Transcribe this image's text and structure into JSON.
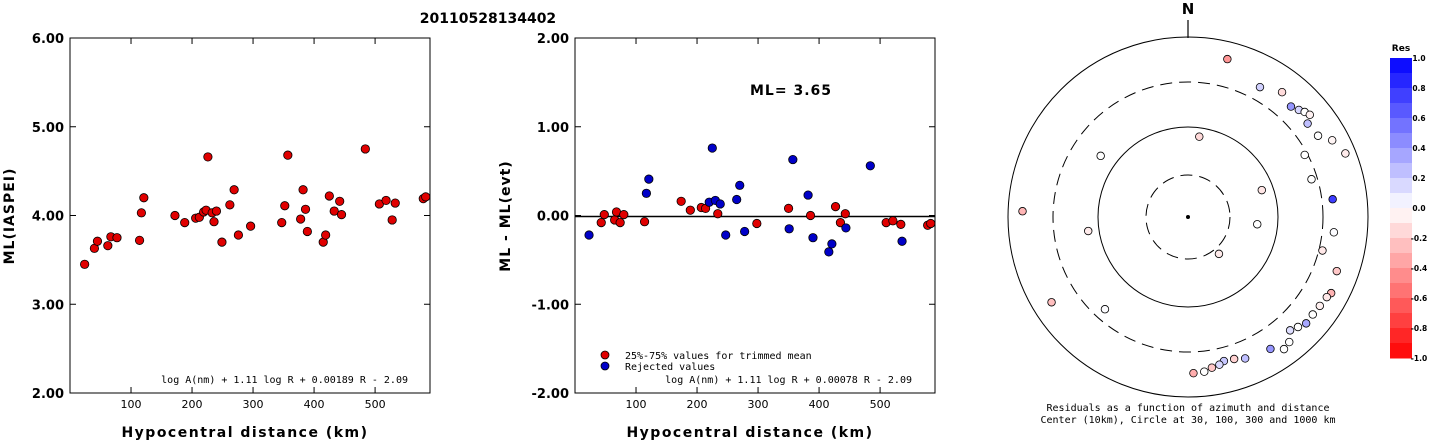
{
  "title": "20110528134402",
  "colors": {
    "red": "#e00000",
    "blue": "#0000c8",
    "axis": "#000000"
  },
  "left_panel": {
    "ylabel": "ML(IASPEI)",
    "xlabel": "Hypocentral distance (km)",
    "formula": "log A(nm) + 1.11 log R + 0.00189 R - 2.09",
    "yticks": [
      "6.00",
      "5.00",
      "4.00",
      "3.00",
      "2.00"
    ],
    "xticks": [
      "100",
      "200",
      "300",
      "400",
      "500"
    ]
  },
  "middle_panel": {
    "ylabel": "ML - ML(evt)",
    "xlabel": "Hypocentral distance (km)",
    "ml_text": "ML= 3.65",
    "formula": "log A(nm) + 1.11 log R + 0.00078 R - 2.09",
    "legend_red": "25%-75% values for trimmed mean",
    "legend_blue": "Rejected values",
    "yticks": [
      "2.00",
      "1.00",
      "0.00",
      "-1.00",
      "-2.00"
    ],
    "xticks": [
      "100",
      "200",
      "300",
      "400",
      "500"
    ]
  },
  "polar_panel": {
    "north_label": "N",
    "caption_line1": "Residuals as a function of azimuth and distance",
    "caption_line2": "Center (10km), Circle at 30, 100, 300 and 1000 km",
    "colorbar_title": "Res",
    "colorbar_ticks": [
      "1.0",
      "0.8",
      "0.6",
      "0.4",
      "0.2",
      "0.0",
      "-0.2",
      "-0.4",
      "-0.6",
      "-0.8",
      "-1.0"
    ]
  },
  "chart_data": [
    {
      "type": "scatter",
      "title": "20110528134402",
      "xlabel": "Hypocentral distance (km)",
      "ylabel": "ML(IASPEI)",
      "xlim": [
        0,
        590
      ],
      "ylim": [
        2.0,
        6.0
      ],
      "series": [
        {
          "color": "#e00000",
          "points": [
            [
              24,
              3.45
            ],
            [
              40,
              3.63
            ],
            [
              45,
              3.71
            ],
            [
              62,
              3.66
            ],
            [
              67,
              3.76
            ],
            [
              77,
              3.75
            ],
            [
              114,
              3.72
            ],
            [
              117,
              4.03
            ],
            [
              121,
              4.2
            ],
            [
              172,
              4.0
            ],
            [
              188,
              3.92
            ],
            [
              206,
              3.97
            ],
            [
              212,
              3.98
            ],
            [
              219,
              4.04
            ],
            [
              223,
              4.06
            ],
            [
              226,
              4.66
            ],
            [
              233,
              4.03
            ],
            [
              236,
              3.93
            ],
            [
              240,
              4.05
            ],
            [
              249,
              3.7
            ],
            [
              262,
              4.12
            ],
            [
              269,
              4.29
            ],
            [
              276,
              3.78
            ],
            [
              296,
              3.88
            ],
            [
              347,
              3.92
            ],
            [
              352,
              4.11
            ],
            [
              357,
              4.68
            ],
            [
              378,
              3.96
            ],
            [
              382,
              4.29
            ],
            [
              386,
              4.07
            ],
            [
              389,
              3.82
            ],
            [
              415,
              3.7
            ],
            [
              419,
              3.78
            ],
            [
              425,
              4.22
            ],
            [
              433,
              4.05
            ],
            [
              442,
              4.16
            ],
            [
              445,
              4.01
            ],
            [
              484,
              4.75
            ],
            [
              507,
              4.13
            ],
            [
              518,
              4.17
            ],
            [
              528,
              3.95
            ],
            [
              533,
              4.14
            ],
            [
              579,
              4.19
            ],
            [
              583,
              4.21
            ]
          ]
        }
      ]
    },
    {
      "type": "scatter",
      "title": "ML= 3.65",
      "xlabel": "Hypocentral distance (km)",
      "ylabel": "ML - ML(evt)",
      "xlim": [
        0,
        590
      ],
      "ylim": [
        -2.0,
        2.0
      ],
      "series": [
        {
          "name": "25%-75% values for trimmed mean",
          "color": "#e00000",
          "points": [
            [
              43,
              -0.08
            ],
            [
              48,
              0.01
            ],
            [
              65,
              -0.05
            ],
            [
              68,
              0.04
            ],
            [
              74,
              -0.08
            ],
            [
              80,
              0.01
            ],
            [
              114,
              -0.07
            ],
            [
              174,
              0.16
            ],
            [
              189,
              0.06
            ],
            [
              207,
              0.09
            ],
            [
              214,
              0.08
            ],
            [
              234,
              0.02
            ],
            [
              298,
              -0.09
            ],
            [
              350,
              0.08
            ],
            [
              386,
              0.0
            ],
            [
              427,
              0.1
            ],
            [
              435,
              -0.08
            ],
            [
              443,
              0.02
            ],
            [
              510,
              -0.08
            ],
            [
              521,
              -0.06
            ],
            [
              534,
              -0.1
            ],
            [
              578,
              -0.11
            ],
            [
              583,
              -0.09
            ]
          ]
        },
        {
          "name": "Rejected values",
          "color": "#0000c8",
          "points": [
            [
              23,
              -0.22
            ],
            [
              117,
              0.25
            ],
            [
              121,
              0.41
            ],
            [
              220,
              0.15
            ],
            [
              225,
              0.76
            ],
            [
              230,
              0.17
            ],
            [
              238,
              0.13
            ],
            [
              247,
              -0.22
            ],
            [
              265,
              0.18
            ],
            [
              270,
              0.34
            ],
            [
              278,
              -0.18
            ],
            [
              351,
              -0.15
            ],
            [
              357,
              0.63
            ],
            [
              382,
              0.23
            ],
            [
              390,
              -0.25
            ],
            [
              416,
              -0.41
            ],
            [
              421,
              -0.32
            ],
            [
              444,
              -0.14
            ],
            [
              484,
              0.56
            ],
            [
              536,
              -0.29
            ]
          ]
        }
      ]
    },
    {
      "type": "scatter",
      "title": "Residuals as a function of azimuth and distance",
      "xlabel": "",
      "ylabel": "",
      "note": "polar plot, azimuth in degrees clockwise from north, log distance rings at 30, 100, 300 and 1000 km, color = residual",
      "colorbar": {
        "label": "Res",
        "range": [
          -1.0,
          1.0
        ]
      },
      "points": [
        {
          "azimuth": 14,
          "distance_km": 630,
          "residual": -0.41
        },
        {
          "azimuth": 37,
          "distance_km": 530,
          "residual": -0.14
        },
        {
          "azimuth": 29,
          "distance_km": 430,
          "residual": 0.18
        },
        {
          "azimuth": 43,
          "distance_km": 460,
          "residual": 0.41
        },
        {
          "azimuth": 46,
          "distance_km": 500,
          "residual": 0.16
        },
        {
          "azimuth": 48,
          "distance_km": 540,
          "residual": 0.0
        },
        {
          "azimuth": 50,
          "distance_km": 570,
          "residual": -0.05
        },
        {
          "azimuth": 52,
          "distance_km": 470,
          "residual": 0.25
        },
        {
          "azimuth": 58,
          "distance_km": 490,
          "residual": 0.0
        },
        {
          "azimuth": 62,
          "distance_km": 640,
          "residual": -0.04
        },
        {
          "azimuth": 68,
          "distance_km": 760,
          "residual": -0.08
        },
        {
          "azimuth": 73,
          "distance_km": 260,
          "residual": 0.0
        },
        {
          "azimuth": 83,
          "distance_km": 400,
          "residual": 0.76
        },
        {
          "azimuth": 96,
          "distance_km": 410,
          "residual": 0.01
        },
        {
          "azimuth": 104,
          "distance_km": 330,
          "residual": -0.09
        },
        {
          "azimuth": 110,
          "distance_km": 560,
          "residual": -0.22
        },
        {
          "azimuth": 118,
          "distance_km": 620,
          "residual": -0.3
        },
        {
          "azimuth": 120,
          "distance_km": 590,
          "residual": -0.09
        },
        {
          "azimuth": 124,
          "distance_km": 570,
          "residual": -0.06
        },
        {
          "azimuth": 128,
          "distance_km": 560,
          "residual": 0.0
        },
        {
          "azimuth": 132,
          "distance_km": 570,
          "residual": 0.34
        },
        {
          "azimuth": 135,
          "distance_km": 520,
          "residual": 0.0
        },
        {
          "azimuth": 138,
          "distance_km": 480,
          "residual": 0.13
        },
        {
          "azimuth": 141,
          "distance_km": 600,
          "residual": 0.0
        },
        {
          "azimuth": 144,
          "distance_km": 640,
          "residual": 0.0
        },
        {
          "azimuth": 148,
          "distance_km": 520,
          "residual": 0.41
        },
        {
          "azimuth": 158,
          "distance_km": 480,
          "residual": 0.25
        },
        {
          "azimuth": 162,
          "distance_km": 440,
          "residual": -0.18
        },
        {
          "azimuth": 166,
          "distance_km": 430,
          "residual": 0.22
        },
        {
          "azimuth": 168,
          "distance_km": 460,
          "residual": 0.15
        },
        {
          "azimuth": 171,
          "distance_km": 480,
          "residual": -0.22
        },
        {
          "azimuth": 174,
          "distance_km": 520,
          "residual": 0.0
        },
        {
          "azimuth": 178,
          "distance_km": 530,
          "residual": -0.32
        },
        {
          "azimuth": 222,
          "distance_km": 230,
          "residual": 0.01
        },
        {
          "azimuth": 238,
          "distance_km": 600,
          "residual": -0.25
        },
        {
          "azimuth": 262,
          "distance_km": 130,
          "residual": -0.08
        },
        {
          "azimuth": 272,
          "distance_km": 680,
          "residual": -0.29
        },
        {
          "azimuth": 305,
          "distance_km": 150,
          "residual": 0.0
        },
        {
          "azimuth": 8,
          "distance_km": 80,
          "residual": -0.15
        },
        {
          "azimuth": 140,
          "distance_km": 35,
          "residual": -0.08
        },
        {
          "azimuth": 62,
          "distance_km": 280,
          "residual": 0.0
        },
        {
          "azimuth": 70,
          "distance_km": 75,
          "residual": -0.1
        },
        {
          "azimuth": 96,
          "distance_km": 60,
          "residual": 0.0
        }
      ]
    }
  ]
}
